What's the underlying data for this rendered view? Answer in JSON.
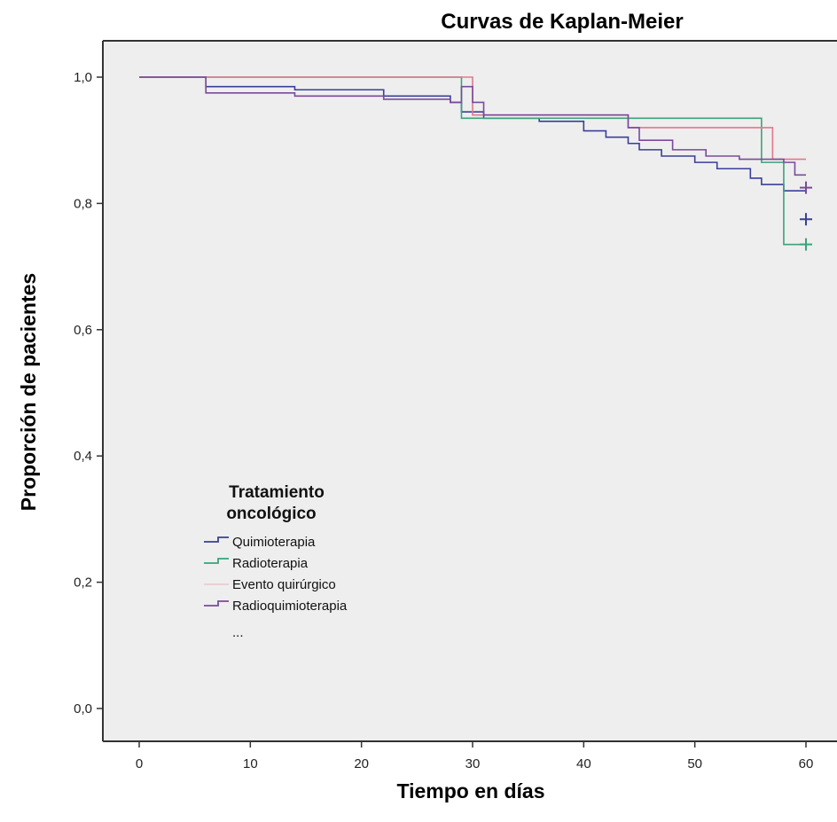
{
  "chart_data": {
    "type": "line",
    "subtype": "kaplan-meier step curves",
    "title": "Curvas de Kaplan-Meier",
    "xlabel": "Tiempo en días",
    "ylabel": "Proporción de pacientes",
    "xlim": [
      0,
      60
    ],
    "ylim": [
      0,
      1
    ],
    "xticks": [
      0,
      10,
      20,
      30,
      40,
      50,
      60
    ],
    "yticks": [
      0,
      0.2,
      0.4,
      0.6,
      0.8,
      1.0
    ],
    "xtick_labels": [
      "0",
      "10",
      "20",
      "30",
      "40",
      "50",
      "60"
    ],
    "ytick_labels": [
      "0,0",
      "0,2",
      "0,4",
      "0,6",
      "0,8",
      "1,0"
    ],
    "grid": false,
    "legend_position": "bottom-left inside",
    "legend_title": "Tratamiento oncológico",
    "legend_title_lines": [
      "Tratamiento",
      "oncológico"
    ],
    "legend_extra": "...",
    "series": [
      {
        "name": "Quimioterapia",
        "color": "#3a3f9a",
        "steps": [
          [
            0,
            1.0
          ],
          [
            6,
            0.985
          ],
          [
            14,
            0.98
          ],
          [
            22,
            0.97
          ],
          [
            28,
            0.96
          ],
          [
            29,
            0.945
          ],
          [
            31,
            0.935
          ],
          [
            36,
            0.93
          ],
          [
            40,
            0.915
          ],
          [
            42,
            0.905
          ],
          [
            44,
            0.895
          ],
          [
            45,
            0.885
          ],
          [
            47,
            0.875
          ],
          [
            50,
            0.865
          ],
          [
            52,
            0.855
          ],
          [
            55,
            0.84
          ],
          [
            56,
            0.83
          ],
          [
            58,
            0.82
          ],
          [
            60,
            0.82
          ]
        ],
        "censored": [
          [
            60,
            0.775
          ]
        ]
      },
      {
        "name": "Radioterapia",
        "color": "#3aa37a",
        "steps": [
          [
            0,
            1.0
          ],
          [
            29,
            0.935
          ],
          [
            56,
            0.935
          ],
          [
            56,
            0.865
          ],
          [
            58,
            0.865
          ],
          [
            58,
            0.735
          ],
          [
            60,
            0.735
          ]
        ],
        "censored": [
          [
            60,
            0.735
          ]
        ]
      },
      {
        "name": "Evento quirúrgico",
        "color": "#e0788c",
        "steps": [
          [
            0,
            1.0
          ],
          [
            29,
            1.0
          ],
          [
            30,
            0.94
          ],
          [
            43,
            0.94
          ],
          [
            44,
            0.92
          ],
          [
            57,
            0.92
          ],
          [
            57,
            0.87
          ],
          [
            60,
            0.87
          ]
        ],
        "censored": []
      },
      {
        "name": "Radioquimioterapia",
        "color": "#7a4a9a",
        "steps": [
          [
            0,
            1.0
          ],
          [
            6,
            0.975
          ],
          [
            14,
            0.97
          ],
          [
            22,
            0.965
          ],
          [
            28,
            0.96
          ],
          [
            29,
            0.985
          ],
          [
            30,
            0.96
          ],
          [
            31,
            0.94
          ],
          [
            43,
            0.94
          ],
          [
            44,
            0.92
          ],
          [
            45,
            0.9
          ],
          [
            48,
            0.885
          ],
          [
            51,
            0.875
          ],
          [
            54,
            0.87
          ],
          [
            58,
            0.865
          ],
          [
            59,
            0.845
          ],
          [
            60,
            0.845
          ]
        ],
        "censored": [
          [
            60,
            0.825
          ]
        ]
      }
    ]
  }
}
